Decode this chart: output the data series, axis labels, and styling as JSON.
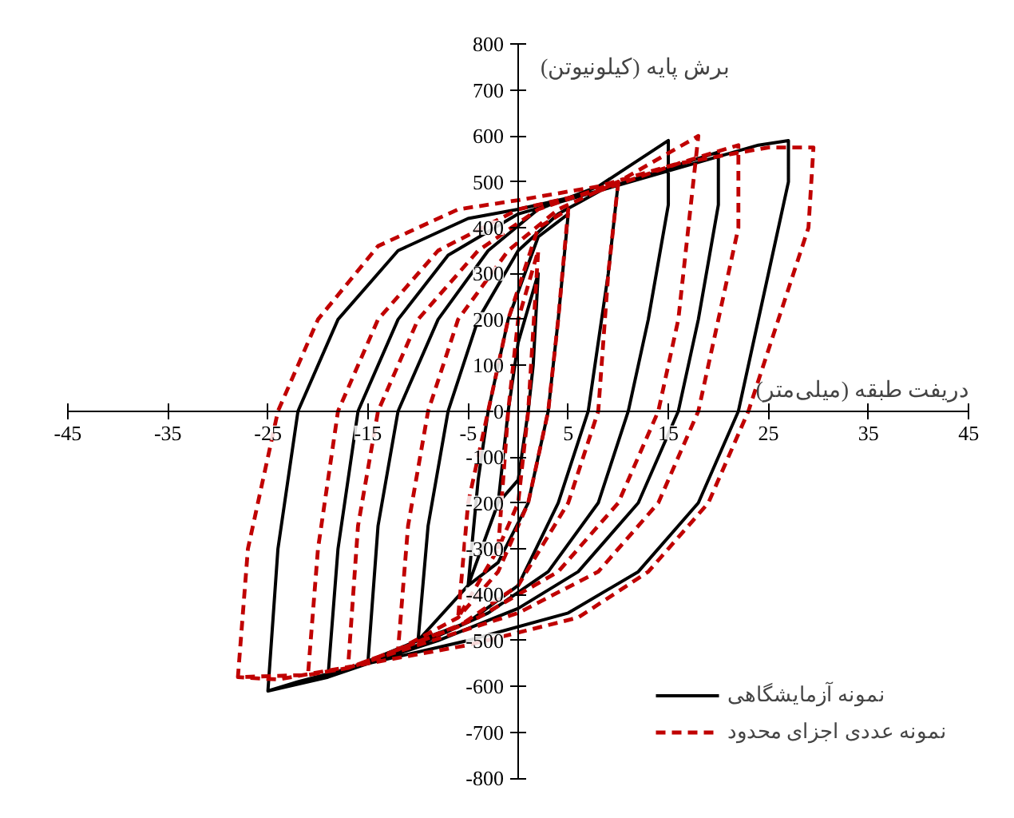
{
  "chart_data": {
    "type": "line",
    "xlabel": "دریفت طبقه (میلی‌متر)",
    "ylabel": "برش پایه (کیلونیوتن)",
    "xlim": [
      -45,
      45
    ],
    "ylim": [
      -800,
      800
    ],
    "xticks": [
      -45,
      -35,
      -25,
      -15,
      -5,
      5,
      15,
      25,
      35,
      45
    ],
    "yticks": [
      -800,
      -700,
      -600,
      -500,
      -400,
      -300,
      -200,
      -100,
      0,
      100,
      200,
      300,
      400,
      500,
      600,
      700,
      800
    ],
    "legend": "bottom right",
    "series": [
      {
        "name": "نمونه آزمایشگاهی",
        "color": "#000000",
        "line_style": "solid",
        "x": [
          -2,
          -1,
          0,
          2,
          1.5,
          1,
          0,
          -2,
          -5,
          -4,
          -3,
          -1,
          2,
          5,
          4,
          3,
          1,
          -2,
          -5,
          -10,
          -9,
          -7,
          -4,
          0,
          4,
          9,
          10,
          9,
          7,
          4,
          0,
          -5,
          -10,
          -15,
          -14,
          -12,
          -8,
          -3,
          2,
          8,
          15,
          15,
          13,
          11,
          8,
          3,
          -3,
          -10,
          -15,
          -19,
          -18,
          -16,
          -12,
          -7,
          0,
          8,
          15,
          20,
          20,
          18,
          16,
          12,
          6,
          0,
          -8,
          -15,
          -19,
          -25,
          -24,
          -22,
          -18,
          -12,
          -5,
          0,
          8,
          16,
          24,
          27,
          27,
          25,
          22,
          18,
          12,
          5,
          -5,
          -15,
          -22,
          -25
        ],
        "values": [
          -200,
          0,
          150,
          300,
          100,
          0,
          -150,
          -200,
          -380,
          -150,
          0,
          200,
          380,
          430,
          200,
          0,
          -200,
          -330,
          -380,
          -500,
          -250,
          0,
          200,
          350,
          430,
          490,
          500,
          300,
          0,
          -200,
          -380,
          -460,
          -500,
          -545,
          -250,
          0,
          200,
          350,
          440,
          490,
          590,
          450,
          200,
          0,
          -200,
          -350,
          -440,
          -510,
          -545,
          -580,
          -300,
          0,
          200,
          340,
          430,
          480,
          530,
          565,
          450,
          200,
          0,
          -200,
          -350,
          -430,
          -500,
          -550,
          -580,
          -610,
          -300,
          0,
          200,
          350,
          420,
          440,
          480,
          530,
          580,
          590,
          500,
          300,
          0,
          -200,
          -350,
          -440,
          -500,
          -550,
          -590,
          -610
        ]
      },
      {
        "name": "نمونه عددی اجزای محدود",
        "color": "#c00000",
        "line_style": "dashed",
        "x": [
          -2,
          -1,
          0,
          2,
          1,
          0,
          -2,
          -6,
          -5,
          -3,
          -1,
          2,
          5,
          4,
          3,
          1,
          -2,
          -6,
          -12,
          -11,
          -9,
          -6,
          -1,
          4,
          10,
          9,
          8,
          5,
          0,
          -6,
          -12,
          -17,
          -16,
          -14,
          -10,
          -4,
          2,
          10,
          18,
          17,
          16,
          14,
          10,
          4,
          -4,
          -12,
          -17,
          -21,
          -20,
          -18,
          -14,
          -8,
          0,
          8,
          16,
          22,
          22,
          20,
          18,
          14,
          8,
          0,
          -10,
          -17,
          -21,
          -28,
          -27,
          -24,
          -20,
          -14,
          -6,
          0,
          8,
          16,
          25,
          29.5,
          29,
          26,
          23,
          19,
          13,
          6,
          -5,
          -15,
          -24,
          -28
        ],
        "values": [
          -300,
          0,
          200,
          350,
          0,
          -200,
          -300,
          -450,
          -200,
          0,
          200,
          400,
          440,
          200,
          0,
          -200,
          -350,
          -450,
          -520,
          -250,
          0,
          200,
          350,
          440,
          500,
          300,
          0,
          -200,
          -380,
          -470,
          -520,
          -560,
          -250,
          0,
          200,
          350,
          440,
          500,
          600,
          400,
          200,
          0,
          -200,
          -350,
          -450,
          -520,
          -560,
          -575,
          -300,
          0,
          200,
          350,
          440,
          480,
          540,
          580,
          400,
          200,
          0,
          -200,
          -350,
          -440,
          -510,
          -560,
          -575,
          -580,
          -300,
          0,
          200,
          360,
          440,
          460,
          490,
          540,
          575,
          575,
          400,
          200,
          0,
          -200,
          -350,
          -450,
          -510,
          -550,
          -585,
          -580
        ]
      }
    ]
  }
}
